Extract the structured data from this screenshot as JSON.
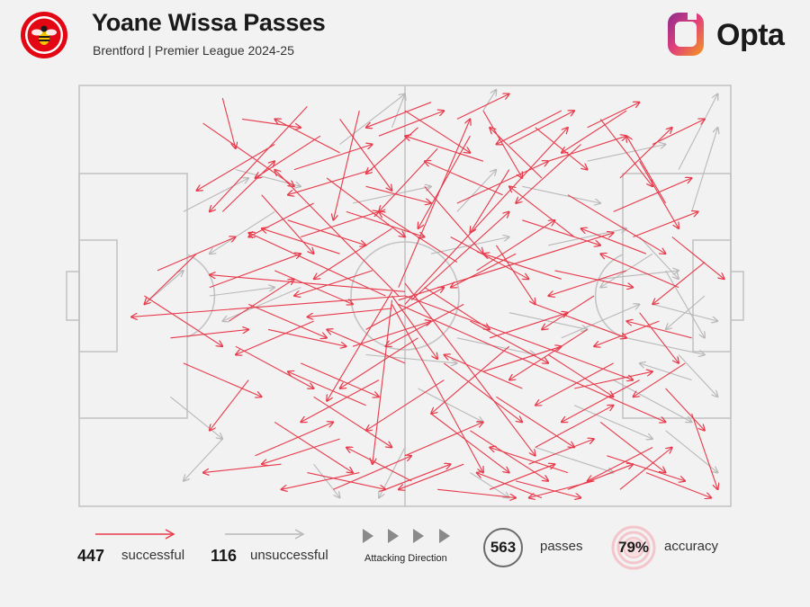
{
  "header": {
    "title": "Yoane Wissa Passes",
    "subtitle": "Brentford | Premier League 2024-25",
    "brand": "Opta",
    "crest_icon": "brentford-crest-icon",
    "brand_icon": "opta-logo-icon",
    "colors": {
      "crest_red": "#e30613",
      "opta_orange": "#f39a1e",
      "opta_purple": "#8b2a8f"
    }
  },
  "legend": {
    "successful_count": "447",
    "successful_label": "successful",
    "unsuccessful_count": "116",
    "unsuccessful_label": "unsuccessful",
    "direction_label": "Attacking Direction",
    "passes_value": "563",
    "passes_label": "passes",
    "accuracy_value": "79%",
    "accuracy_label": "accuracy"
  },
  "chart_data": {
    "type": "scatter",
    "title": "Yoane Wissa Passes",
    "subtitle": "Brentford | Premier League 2024-25",
    "pitch": {
      "length": 100,
      "width": 100,
      "attacking_direction": "left-to-right"
    },
    "colors": {
      "successful": "#e8394a",
      "unsuccessful": "#b8b8b8",
      "pitch_lines": "#c4c4c4"
    },
    "totals": {
      "successful": 447,
      "unsuccessful": 116,
      "passes": 563,
      "accuracy_pct": 79
    },
    "series": [
      {
        "name": "successful",
        "passes": [
          [
            49,
            51,
            82,
            35
          ],
          [
            50,
            50,
            85,
            70
          ],
          [
            48,
            52,
            62,
            92
          ],
          [
            50,
            49,
            20,
            45
          ],
          [
            49,
            50,
            30,
            20
          ],
          [
            48,
            51,
            45,
            90
          ],
          [
            50,
            52,
            75,
            10
          ],
          [
            49,
            48,
            60,
            8
          ],
          [
            47,
            50,
            26,
            35
          ],
          [
            48,
            53,
            35,
            55
          ],
          [
            50,
            47,
            70,
            88
          ],
          [
            49,
            52,
            90,
            80
          ],
          [
            48,
            50,
            55,
            65
          ],
          [
            51,
            51,
            66,
            30
          ],
          [
            48,
            49,
            38,
            75
          ],
          [
            50,
            50,
            8,
            55
          ],
          [
            22,
            3,
            24,
            15
          ],
          [
            25,
            8,
            34,
            10
          ],
          [
            30,
            14,
            18,
            25
          ],
          [
            35,
            5,
            20,
            30
          ],
          [
            19,
            9,
            33,
            24
          ],
          [
            40,
            8,
            48,
            25
          ],
          [
            43,
            6,
            39,
            32
          ],
          [
            52,
            10,
            44,
            21
          ],
          [
            62,
            6,
            68,
            22
          ],
          [
            70,
            10,
            78,
            20
          ],
          [
            55,
            15,
            46,
            30
          ],
          [
            60,
            12,
            52,
            34
          ],
          [
            72,
            18,
            84,
            12
          ],
          [
            80,
            8,
            88,
            24
          ],
          [
            66,
            20,
            60,
            35
          ],
          [
            75,
            26,
            90,
            40
          ],
          [
            58,
            28,
            72,
            18
          ],
          [
            45,
            20,
            32,
            26
          ],
          [
            38,
            22,
            50,
            36
          ],
          [
            28,
            26,
            36,
            40
          ],
          [
            22,
            30,
            30,
            18
          ],
          [
            32,
            32,
            44,
            38
          ],
          [
            53,
            24,
            62,
            40
          ],
          [
            68,
            32,
            80,
            38
          ],
          [
            82,
            30,
            94,
            22
          ],
          [
            86,
            18,
            92,
            34
          ],
          [
            90,
            28,
            84,
            12
          ],
          [
            76,
            36,
            66,
            24
          ],
          [
            64,
            38,
            70,
            52
          ],
          [
            58,
            42,
            46,
            30
          ],
          [
            48,
            34,
            36,
            46
          ],
          [
            40,
            40,
            28,
            34
          ],
          [
            30,
            44,
            42,
            52
          ],
          [
            20,
            48,
            34,
            40
          ],
          [
            26,
            52,
            38,
            60
          ],
          [
            36,
            56,
            24,
            64
          ],
          [
            44,
            58,
            56,
            48
          ],
          [
            52,
            60,
            40,
            72
          ],
          [
            60,
            56,
            72,
            66
          ],
          [
            70,
            52,
            84,
            60
          ],
          [
            78,
            58,
            66,
            70
          ],
          [
            86,
            54,
            92,
            66
          ],
          [
            92,
            48,
            80,
            40
          ],
          [
            84,
            44,
            72,
            50
          ],
          [
            74,
            46,
            62,
            40
          ],
          [
            66,
            62,
            54,
            78
          ],
          [
            56,
            66,
            68,
            80
          ],
          [
            46,
            70,
            34,
            80
          ],
          [
            36,
            74,
            48,
            86
          ],
          [
            26,
            70,
            20,
            82
          ],
          [
            30,
            80,
            42,
            92
          ],
          [
            40,
            84,
            28,
            90
          ],
          [
            50,
            88,
            62,
            80
          ],
          [
            60,
            82,
            72,
            94
          ],
          [
            70,
            86,
            82,
            76
          ],
          [
            80,
            80,
            90,
            92
          ],
          [
            88,
            86,
            78,
            94
          ],
          [
            76,
            72,
            88,
            68
          ],
          [
            90,
            72,
            96,
            82
          ],
          [
            94,
            60,
            84,
            56
          ],
          [
            96,
            42,
            88,
            52
          ],
          [
            82,
            66,
            70,
            76
          ],
          [
            64,
            74,
            76,
            86
          ],
          [
            54,
            78,
            66,
            92
          ],
          [
            44,
            76,
            32,
            68
          ],
          [
            34,
            66,
            46,
            74
          ],
          [
            24,
            62,
            36,
            72
          ],
          [
            16,
            66,
            28,
            74
          ],
          [
            14,
            60,
            26,
            58
          ],
          [
            18,
            40,
            10,
            52
          ],
          [
            12,
            44,
            24,
            36
          ],
          [
            10,
            50,
            22,
            62
          ],
          [
            42,
            62,
            54,
            56
          ],
          [
            50,
            66,
            38,
            58
          ],
          [
            56,
            70,
            44,
            82
          ],
          [
            62,
            68,
            74,
            62
          ],
          [
            68,
            72,
            56,
            64
          ],
          [
            72,
            64,
            82,
            74
          ],
          [
            86,
            70,
            74,
            80
          ],
          [
            94,
            78,
            98,
            96
          ],
          [
            57,
            36,
            69,
            46
          ],
          [
            61,
            44,
            73,
            32
          ],
          [
            65,
            26,
            53,
            18
          ],
          [
            71,
            22,
            63,
            10
          ],
          [
            77,
            14,
            67,
            28
          ],
          [
            83,
            22,
            91,
            10
          ],
          [
            87,
            40,
            77,
            34
          ],
          [
            91,
            36,
            99,
            46
          ],
          [
            33,
            20,
            45,
            14
          ],
          [
            37,
            12,
            27,
            22
          ],
          [
            41,
            30,
            53,
            36
          ],
          [
            45,
            44,
            33,
            50
          ],
          [
            53,
            48,
            63,
            58
          ],
          [
            59,
            52,
            47,
            62
          ],
          [
            63,
            60,
            75,
            54
          ],
          [
            67,
            40,
            57,
            48
          ],
          [
            73,
            44,
            85,
            48
          ],
          [
            79,
            50,
            71,
            58
          ],
          [
            85,
            36,
            95,
            30
          ],
          [
            89,
            56,
            79,
            62
          ],
          [
            93,
            66,
            85,
            74
          ],
          [
            81,
            88,
            93,
            94
          ],
          [
            75,
            92,
            63,
            86
          ],
          [
            69,
            90,
            79,
            84
          ],
          [
            29,
            58,
            41,
            62
          ],
          [
            23,
            56,
            33,
            46
          ],
          [
            27,
            88,
            39,
            80
          ],
          [
            31,
            90,
            19,
            92
          ],
          [
            35,
            92,
            47,
            96
          ],
          [
            39,
            96,
            51,
            88
          ],
          [
            43,
            92,
            31,
            96
          ],
          [
            47,
            96,
            57,
            90
          ],
          [
            51,
            94,
            41,
            86
          ],
          [
            55,
            96,
            67,
            98
          ],
          [
            59,
            90,
            49,
            96
          ],
          [
            63,
            96,
            73,
            90
          ],
          [
            67,
            94,
            77,
            98
          ],
          [
            71,
            98,
            61,
            92
          ],
          [
            75,
            96,
            85,
            90
          ],
          [
            79,
            94,
            69,
            98
          ],
          [
            83,
            96,
            91,
            86
          ],
          [
            87,
            92,
            97,
            98
          ],
          [
            62,
            18,
            50,
            12
          ],
          [
            66,
            14,
            76,
            6
          ],
          [
            74,
            6,
            64,
            14
          ],
          [
            78,
            10,
            86,
            4
          ],
          [
            84,
            6,
            74,
            16
          ],
          [
            88,
            14,
            96,
            8
          ],
          [
            46,
            12,
            56,
            6
          ],
          [
            50,
            6,
            60,
            16
          ],
          [
            54,
            4,
            44,
            10
          ],
          [
            58,
            8,
            66,
            2
          ],
          [
            40,
            16,
            30,
            8
          ],
          [
            36,
            28,
            26,
            36
          ],
          [
            34,
            36,
            46,
            30
          ],
          [
            44,
            24,
            54,
            28
          ]
        ]
      },
      {
        "name": "unsuccessful",
        "passes": [
          [
            48,
            10,
            50,
            2
          ],
          [
            62,
            6,
            64,
            1
          ],
          [
            92,
            20,
            98,
            2
          ],
          [
            94,
            30,
            98,
            10
          ],
          [
            40,
            14,
            50,
            2
          ],
          [
            58,
            30,
            64,
            20
          ],
          [
            86,
            36,
            92,
            46
          ],
          [
            90,
            44,
            96,
            60
          ],
          [
            88,
            52,
            98,
            56
          ],
          [
            84,
            60,
            96,
            64
          ],
          [
            92,
            64,
            98,
            74
          ],
          [
            82,
            70,
            94,
            80
          ],
          [
            76,
            76,
            88,
            84
          ],
          [
            90,
            82,
            98,
            92
          ],
          [
            70,
            86,
            82,
            92
          ],
          [
            60,
            92,
            66,
            98
          ],
          [
            50,
            86,
            46,
            98
          ],
          [
            36,
            90,
            40,
            98
          ],
          [
            22,
            84,
            16,
            94
          ],
          [
            14,
            74,
            22,
            84
          ],
          [
            10,
            52,
            16,
            44
          ],
          [
            20,
            50,
            30,
            48
          ],
          [
            34,
            48,
            22,
            56
          ],
          [
            54,
            40,
            66,
            36
          ],
          [
            72,
            38,
            84,
            34
          ],
          [
            80,
            46,
            92,
            44
          ],
          [
            66,
            54,
            78,
            58
          ],
          [
            52,
            72,
            62,
            80
          ],
          [
            44,
            64,
            58,
            66
          ],
          [
            42,
            28,
            54,
            24
          ],
          [
            30,
            30,
            20,
            40
          ],
          [
            16,
            30,
            26,
            22
          ],
          [
            24,
            20,
            34,
            24
          ],
          [
            68,
            24,
            80,
            28
          ],
          [
            78,
            18,
            90,
            14
          ],
          [
            74,
            60,
            86,
            52
          ],
          [
            88,
            40,
            80,
            48
          ],
          [
            96,
            50,
            90,
            58
          ],
          [
            94,
            70,
            86,
            66
          ],
          [
            58,
            60,
            70,
            64
          ]
        ]
      }
    ]
  }
}
